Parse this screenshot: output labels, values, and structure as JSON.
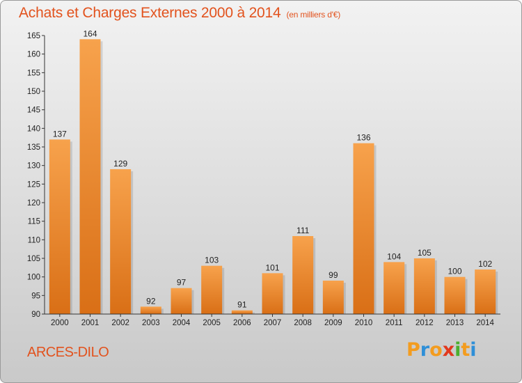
{
  "header": {
    "title": "Achats et Charges Externes 2000 à 2014",
    "subtitle": "(en milliers d'€)"
  },
  "footer": {
    "commune": "ARCES-DILO",
    "brand": "Proxiti",
    "brand_letters": [
      {
        "char": "P",
        "color": "#f39c1f"
      },
      {
        "char": "r",
        "color": "#2e8fd8"
      },
      {
        "char": "o",
        "color": "#f39c1f"
      },
      {
        "char": "x",
        "color": "#e2381d"
      },
      {
        "char": "i",
        "color": "#4caf2e"
      },
      {
        "char": "t",
        "color": "#f39c1f"
      },
      {
        "char": "i",
        "color": "#2e8fd8"
      }
    ]
  },
  "colors": {
    "accent": "#e2521d",
    "bar_light": "#f7a24c",
    "bar_dark": "#d96f16",
    "axis": "#333333"
  },
  "chart_data": {
    "type": "bar",
    "title": "Achats et Charges Externes 2000 à 2014",
    "subtitle": "(en milliers d'€)",
    "xlabel": "",
    "ylabel": "",
    "categories": [
      "2000",
      "2001",
      "2002",
      "2003",
      "2004",
      "2005",
      "2006",
      "2007",
      "2008",
      "2009",
      "2010",
      "2011",
      "2012",
      "2013",
      "2014"
    ],
    "values": [
      137,
      164,
      129,
      92,
      97,
      103,
      91,
      101,
      111,
      99,
      136,
      104,
      105,
      100,
      102
    ],
    "ylim": [
      90,
      165
    ],
    "yticks": [
      90,
      95,
      100,
      105,
      110,
      115,
      120,
      125,
      130,
      135,
      140,
      145,
      150,
      155,
      160,
      165
    ],
    "grid": false,
    "legend": "none",
    "data_labels": true
  }
}
